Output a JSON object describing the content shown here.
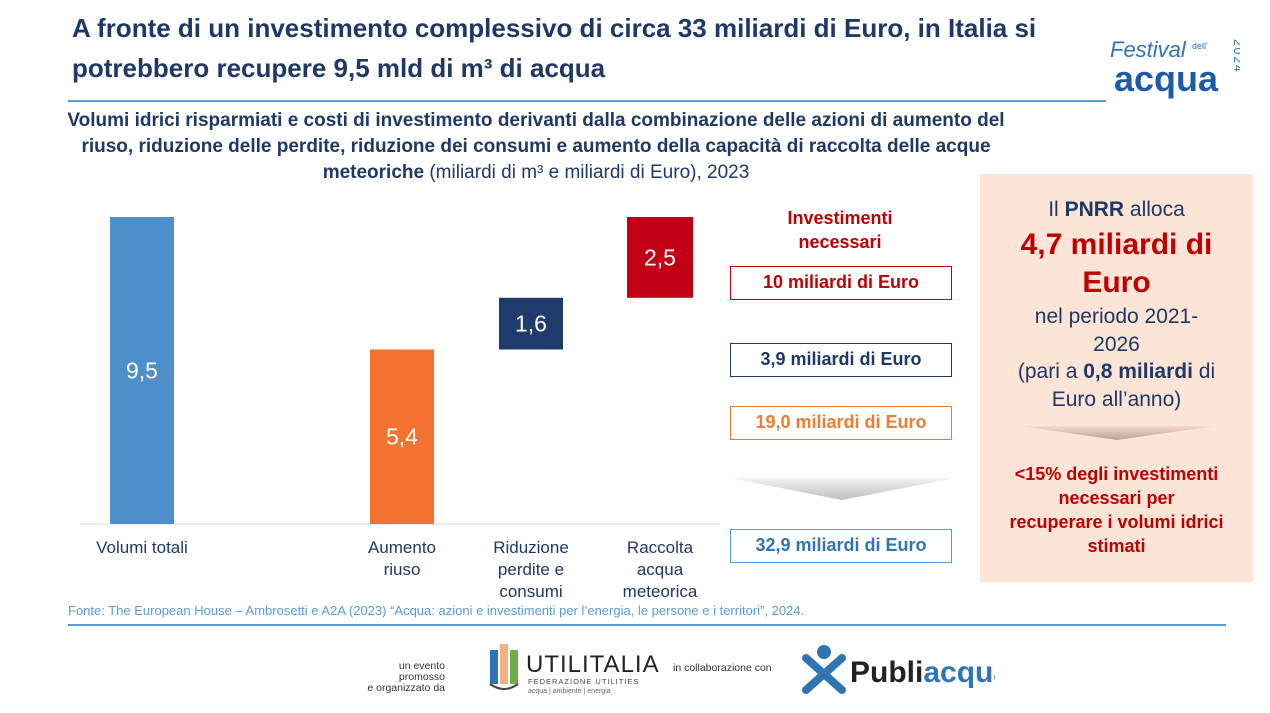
{
  "title": "A fronte di un investimento complessivo di circa 33 miliardi di Euro, in Italia si potrebbero recupere 9,5 mld di m³ di acqua",
  "subtitle": {
    "bold": "Volumi idrici risparmiati e costi di investimento derivanti dalla combinazione delle azioni di aumento del riuso, riduzione delle perdite, riduzione dei consumi e aumento della capacità di raccolta delle acque meteoriche",
    "normal": " (miliardi di m³ e miliardi di Euro), 2023"
  },
  "logo": {
    "festival": "Festival",
    "dell": "dell'",
    "acqua": "acqua",
    "year": "2024"
  },
  "chart_data": {
    "type": "bar",
    "subtype": "waterfall",
    "categories": [
      "Volumi totali",
      "Aumento riuso",
      "Riduzione perdite e consumi",
      "Raccolta acqua meteorica"
    ],
    "category_lines": [
      [
        "Volumi totali"
      ],
      [
        "Aumento",
        "riuso"
      ],
      [
        "Riduzione",
        "perdite e",
        "consumi"
      ],
      [
        "Raccolta",
        "acqua",
        "meteorica"
      ]
    ],
    "values": [
      9.5,
      5.4,
      1.6,
      2.5
    ],
    "labels": [
      "9,5",
      "5,4",
      "1,6",
      "2,5"
    ],
    "colors": [
      "#4e8fcc",
      "#f47330",
      "#1f3b6b",
      "#c10016"
    ],
    "ylim": [
      0,
      9.5
    ],
    "grid": false,
    "legend": "none"
  },
  "investments": {
    "heading_line1": "Investimenti",
    "heading_line2": "necessari",
    "items": [
      "10 miliardi di Euro",
      "3,9 miliardi di Euro",
      "19,0 miliardi di Euro"
    ],
    "total": "32,9 miliardi di Euro"
  },
  "pnrr": {
    "pre": "Il ",
    "bold": "PNRR",
    "post": " alloca",
    "amount_line1": "4,7 miliardi di",
    "amount_line2": "Euro",
    "period_line1": "nel periodo 2021-",
    "period_line2": "2026",
    "pari_pre": "(pari a ",
    "pari_bold": "0,8 miliardi",
    "pari_post": " di",
    "pari_line2": "Euro all’anno)",
    "conclusion": [
      "<15% degli investimenti",
      "necessari per",
      "recuperare i volumi idrici",
      "stimati"
    ]
  },
  "source": "Fonte: The European House – Ambrosetti e A2A (2023) “Acqua: azioni e investimenti per l’energia, le persone e i territori”, 2024.",
  "footer": {
    "promo_line1": "un evento promosso",
    "promo_line2": "e organizzato da",
    "utilitalia": "UTILITALIA",
    "utilitalia_sub": "FEDERAZIONE UTILITIES",
    "utilitalia_tag": "acqua | ambiente | energia",
    "collab": "in collaborazione con",
    "publi": "Publi",
    "acqua": "acqua"
  }
}
